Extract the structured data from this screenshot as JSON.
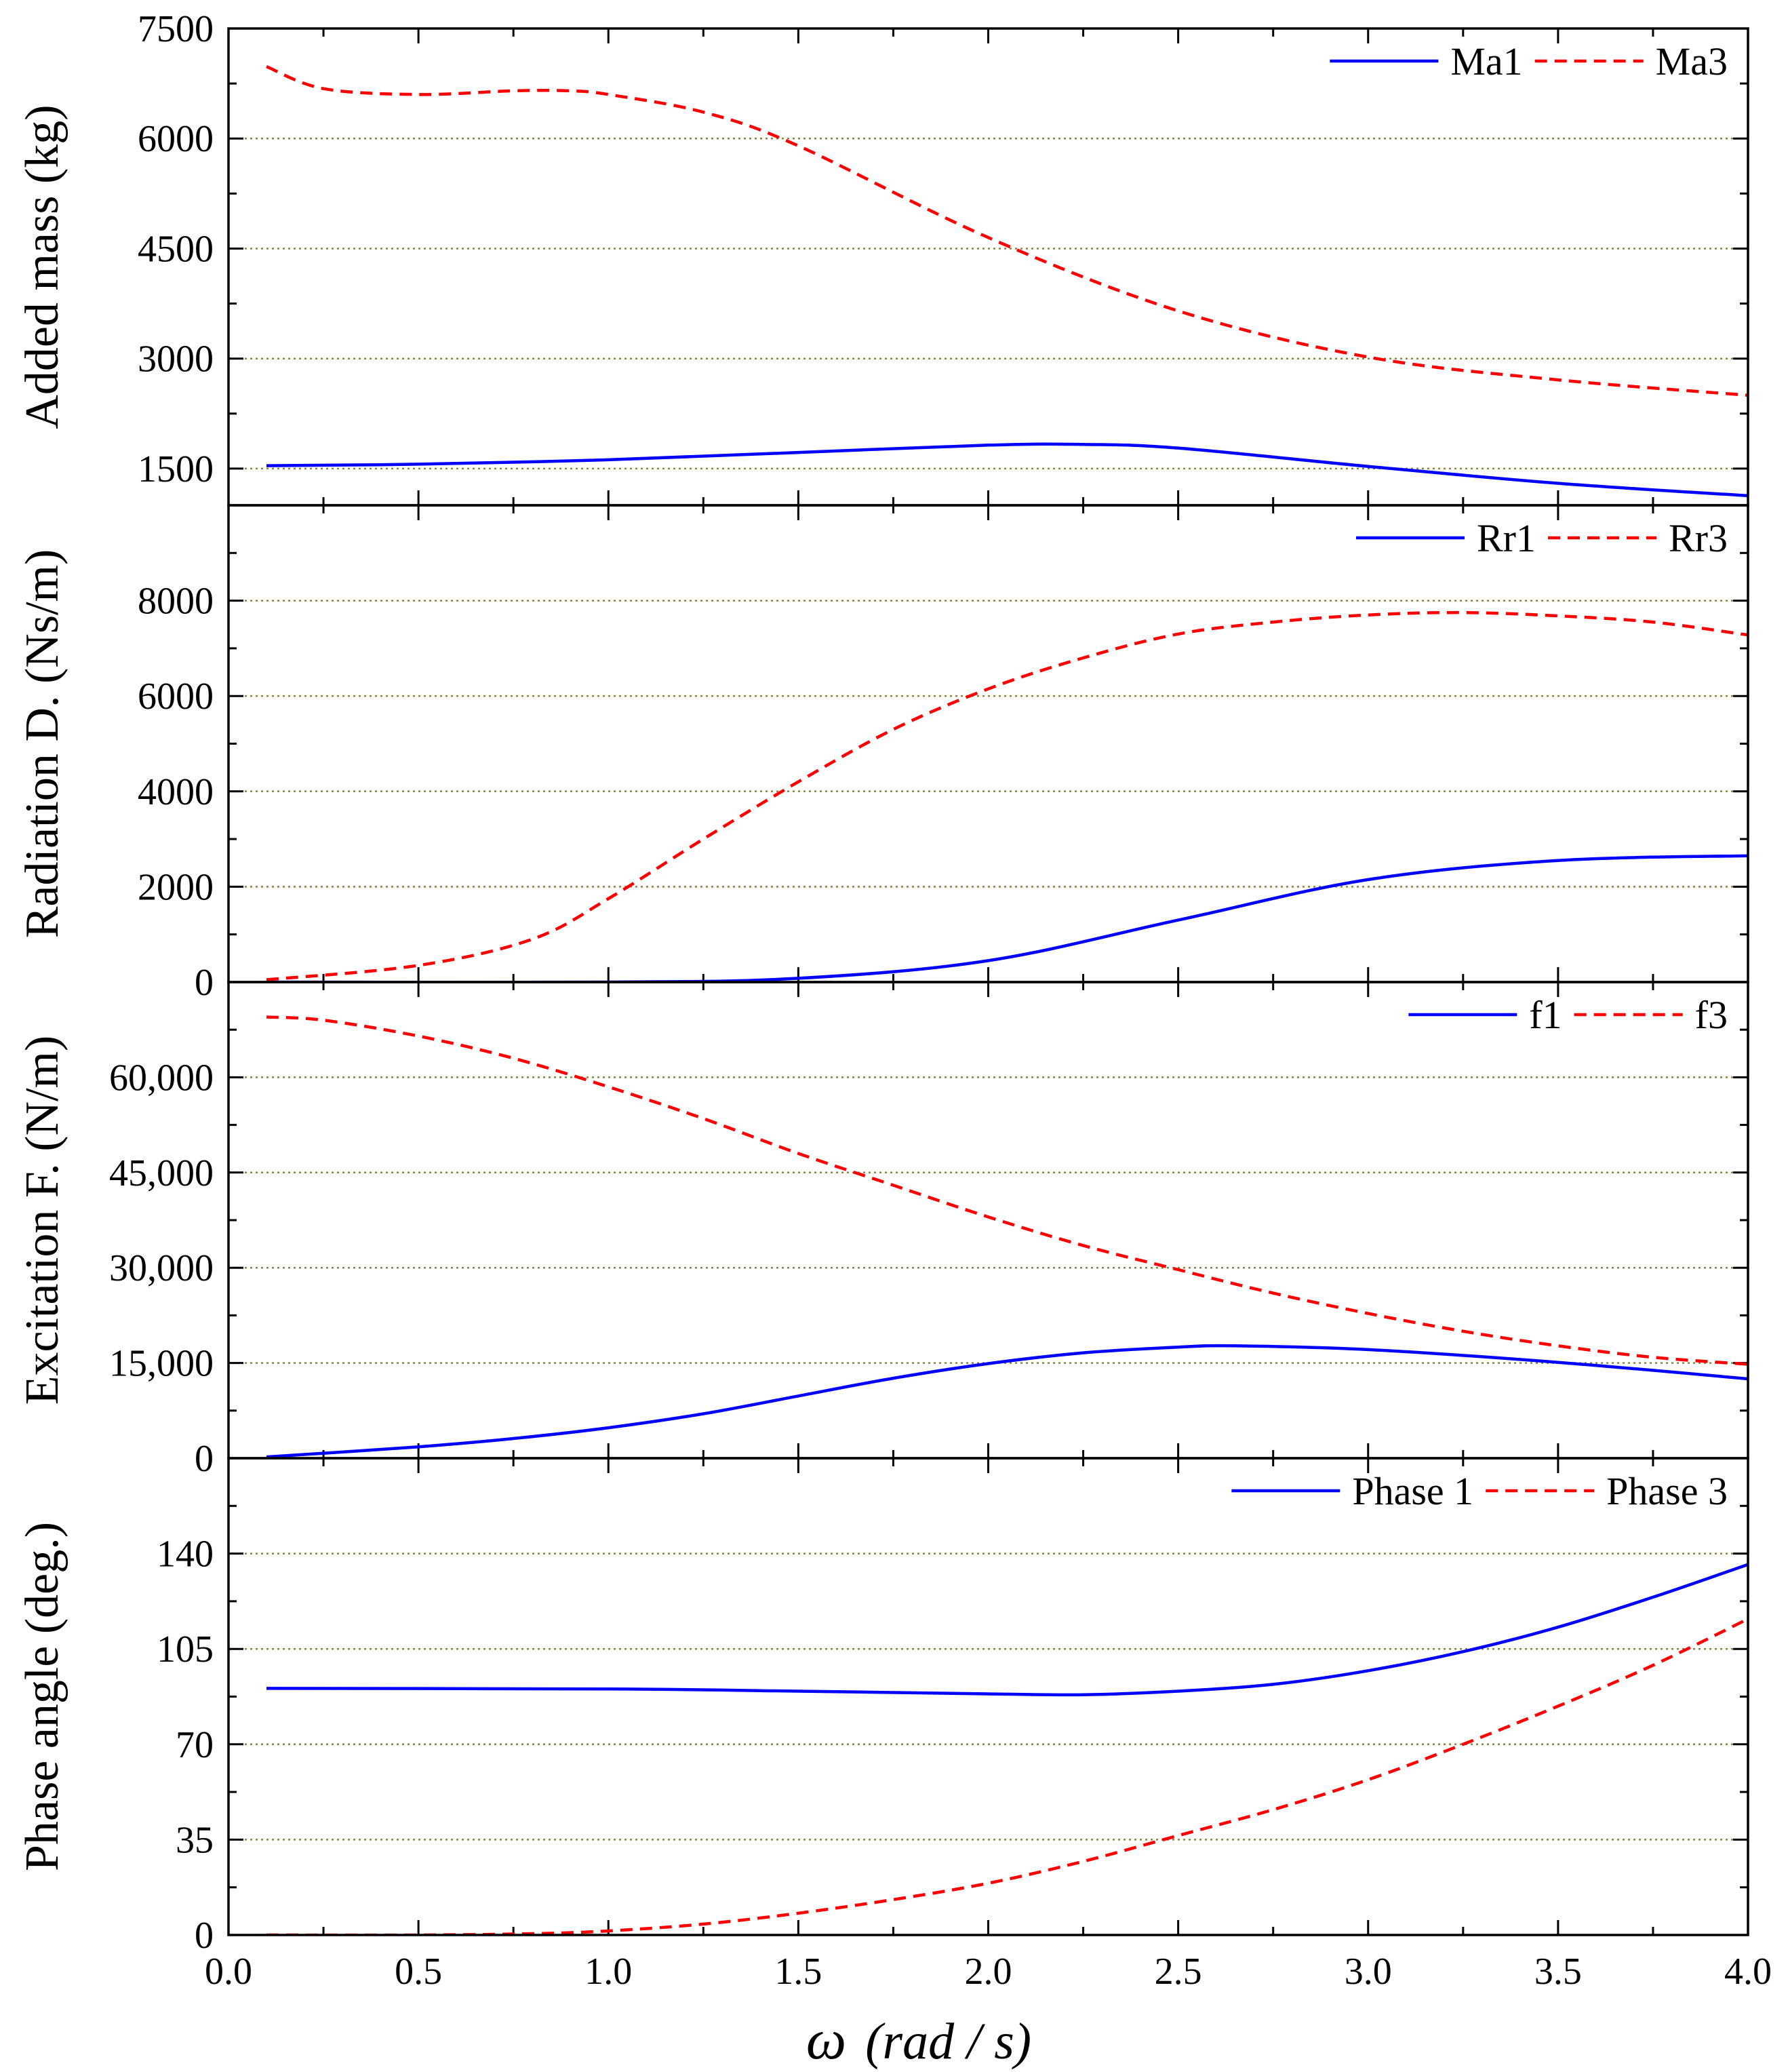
{
  "x_axis": {
    "ticks": [
      "0.0",
      "0.5",
      "1.0",
      "1.5",
      "2.0",
      "2.5",
      "3.0",
      "3.5",
      "4.0"
    ],
    "tick_values": [
      0,
      0.5,
      1.0,
      1.5,
      2.0,
      2.5,
      3.0,
      3.5,
      4.0
    ],
    "range": [
      0,
      4.0
    ],
    "label_symbol": "ω",
    "label_unit": "(rad / s)"
  },
  "chart_data": [
    {
      "type": "line",
      "ylabel": "Added mass (kg)",
      "ylim": [
        1000,
        7500
      ],
      "yticks": [
        1500,
        3000,
        4500,
        6000,
        7500
      ],
      "ytick_labels": [
        "1500",
        "3000",
        "4500",
        "6000",
        "7500"
      ],
      "grid": true,
      "legend_position": "top-right",
      "series": [
        {
          "name": "Ma1",
          "color": "#0000ff",
          "dash": "solid",
          "x": [
            0.1,
            0.5,
            1.0,
            1.5,
            2.0,
            2.25,
            2.5,
            3.0,
            3.5,
            4.0
          ],
          "y": [
            1540,
            1560,
            1620,
            1720,
            1820,
            1830,
            1780,
            1530,
            1300,
            1130
          ]
        },
        {
          "name": "Ma3",
          "color": "#ff0000",
          "dash": "dashed",
          "x": [
            0.1,
            0.25,
            0.5,
            0.75,
            0.9,
            1.0,
            1.25,
            1.5,
            2.0,
            2.5,
            3.0,
            3.5,
            4.0
          ],
          "y": [
            6980,
            6680,
            6600,
            6650,
            6650,
            6600,
            6360,
            5900,
            4650,
            3650,
            3020,
            2710,
            2500
          ]
        }
      ]
    },
    {
      "type": "line",
      "ylabel": "Radiation D. (Ns/m)",
      "ylim": [
        0,
        10000
      ],
      "yticks": [
        0,
        2000,
        4000,
        6000,
        8000
      ],
      "ytick_labels": [
        "0",
        "2000",
        "4000",
        "6000",
        "8000"
      ],
      "grid": true,
      "legend_position": "top-right",
      "series": [
        {
          "name": "Rr1",
          "color": "#0000ff",
          "dash": "solid",
          "x": [
            0.1,
            1.0,
            1.5,
            2.0,
            2.5,
            3.0,
            3.5,
            4.0
          ],
          "y": [
            0,
            0,
            80,
            450,
            1300,
            2150,
            2550,
            2650
          ]
        },
        {
          "name": "Rr3",
          "color": "#ff0000",
          "dash": "dashed",
          "x": [
            0.1,
            0.5,
            0.8,
            1.0,
            1.25,
            1.5,
            1.75,
            2.0,
            2.25,
            2.5,
            2.75,
            3.0,
            3.25,
            3.5,
            3.75,
            4.0
          ],
          "y": [
            50,
            350,
            900,
            1750,
            3000,
            4200,
            5300,
            6150,
            6800,
            7300,
            7550,
            7700,
            7750,
            7680,
            7550,
            7280
          ]
        }
      ]
    },
    {
      "type": "line",
      "ylabel": "Excitation F. (N/m)",
      "ylim": [
        0,
        75000
      ],
      "yticks": [
        0,
        15000,
        30000,
        45000,
        60000
      ],
      "ytick_labels": [
        "0",
        "15,000",
        "30,000",
        "45,000",
        "60,000"
      ],
      "grid": true,
      "legend_position": "top-right",
      "series": [
        {
          "name": "f1",
          "color": "#0000ff",
          "dash": "solid",
          "x": [
            0.1,
            0.5,
            0.75,
            1.0,
            1.25,
            1.5,
            1.75,
            2.0,
            2.25,
            2.5,
            2.65,
            3.0,
            3.5,
            4.0
          ],
          "y": [
            200,
            1800,
            3100,
            4800,
            7000,
            9800,
            12600,
            14900,
            16600,
            17500,
            17700,
            17100,
            15100,
            12500
          ]
        },
        {
          "name": "f3",
          "color": "#ff0000",
          "dash": "dashed",
          "x": [
            0.1,
            0.25,
            0.5,
            0.75,
            1.0,
            1.25,
            1.5,
            1.75,
            2.0,
            2.25,
            2.5,
            2.75,
            3.0,
            3.25,
            3.5,
            3.75,
            4.0
          ],
          "y": [
            69500,
            69000,
            66500,
            63000,
            58500,
            53500,
            48000,
            43000,
            38000,
            33500,
            29700,
            26000,
            22800,
            20000,
            17700,
            15900,
            14800
          ]
        }
      ]
    },
    {
      "type": "line",
      "ylabel": "Phase angle (deg.)",
      "ylim": [
        0,
        175
      ],
      "yticks": [
        0,
        35,
        70,
        105,
        140
      ],
      "ytick_labels": [
        "0",
        "35",
        "70",
        "105",
        "140"
      ],
      "grid": true,
      "legend_position": "top-right",
      "series": [
        {
          "name": "Phase 1",
          "color": "#0000ff",
          "dash": "solid",
          "x": [
            0.1,
            1.0,
            1.5,
            2.0,
            2.25,
            2.5,
            2.75,
            3.0,
            3.25,
            3.5,
            3.75,
            4.0
          ],
          "y": [
            90.5,
            90.3,
            89.5,
            88.5,
            88.2,
            89.5,
            92,
            97,
            104,
            113,
            124,
            136
          ]
        },
        {
          "name": "Phase 3",
          "color": "#ff0000",
          "dash": "dashed",
          "x": [
            0.1,
            0.5,
            0.8,
            1.0,
            1.25,
            1.5,
            1.75,
            2.0,
            2.25,
            2.5,
            2.75,
            3.0,
            3.25,
            3.5,
            3.75,
            4.0
          ],
          "y": [
            0,
            0,
            0.5,
            1.5,
            4,
            8,
            13,
            19,
            27,
            36.5,
            46,
            57,
            70,
            84,
            99,
            116
          ]
        }
      ]
    }
  ]
}
